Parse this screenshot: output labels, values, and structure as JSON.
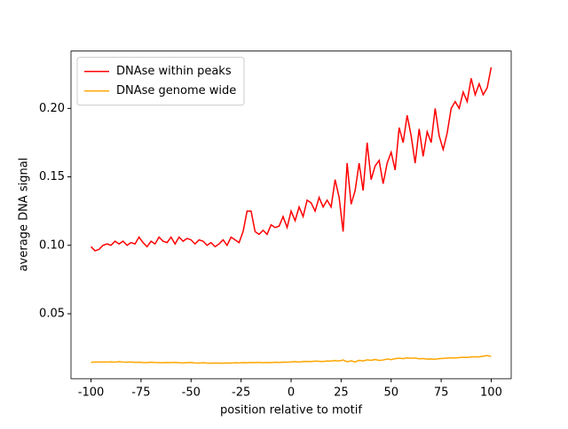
{
  "chart_data": {
    "type": "line",
    "xlabel": "position relative to motif",
    "ylabel": "average DNA signal",
    "x": [
      -100,
      -98,
      -96,
      -94,
      -92,
      -90,
      -88,
      -86,
      -84,
      -82,
      -80,
      -78,
      -76,
      -74,
      -72,
      -70,
      -68,
      -66,
      -64,
      -62,
      -60,
      -58,
      -56,
      -54,
      -52,
      -50,
      -48,
      -46,
      -44,
      -42,
      -40,
      -38,
      -36,
      -34,
      -32,
      -30,
      -28,
      -26,
      -24,
      -22,
      -20,
      -18,
      -16,
      -14,
      -12,
      -10,
      -8,
      -6,
      -4,
      -2,
      0,
      2,
      4,
      6,
      8,
      10,
      12,
      14,
      16,
      18,
      20,
      22,
      24,
      26,
      28,
      30,
      32,
      34,
      36,
      38,
      40,
      42,
      44,
      46,
      48,
      50,
      52,
      54,
      56,
      58,
      60,
      62,
      64,
      66,
      68,
      70,
      72,
      74,
      76,
      78,
      80,
      82,
      84,
      86,
      88,
      90,
      92,
      94,
      96,
      98,
      100
    ],
    "series": [
      {
        "name": "DNAse within peaks",
        "color": "#ff0000",
        "values": [
          0.099,
          0.096,
          0.097,
          0.1,
          0.101,
          0.1,
          0.103,
          0.101,
          0.103,
          0.1,
          0.102,
          0.101,
          0.106,
          0.102,
          0.099,
          0.103,
          0.101,
          0.106,
          0.103,
          0.102,
          0.106,
          0.101,
          0.106,
          0.103,
          0.105,
          0.104,
          0.101,
          0.104,
          0.103,
          0.1,
          0.102,
          0.099,
          0.101,
          0.104,
          0.1,
          0.106,
          0.104,
          0.102,
          0.11,
          0.125,
          0.125,
          0.11,
          0.108,
          0.111,
          0.108,
          0.115,
          0.113,
          0.114,
          0.121,
          0.113,
          0.125,
          0.118,
          0.128,
          0.121,
          0.133,
          0.131,
          0.125,
          0.135,
          0.128,
          0.133,
          0.128,
          0.148,
          0.135,
          0.11,
          0.16,
          0.13,
          0.14,
          0.16,
          0.14,
          0.175,
          0.148,
          0.158,
          0.162,
          0.145,
          0.16,
          0.168,
          0.155,
          0.186,
          0.175,
          0.195,
          0.18,
          0.16,
          0.185,
          0.165,
          0.183,
          0.175,
          0.2,
          0.18,
          0.17,
          0.182,
          0.2,
          0.205,
          0.2,
          0.212,
          0.205,
          0.222,
          0.21,
          0.218,
          0.21,
          0.215,
          0.23
        ]
      },
      {
        "name": "DNAse genome wide",
        "color": "#ffa500",
        "values": [
          0.0145,
          0.0148,
          0.0147,
          0.0148,
          0.0147,
          0.0149,
          0.0146,
          0.015,
          0.0147,
          0.0146,
          0.0148,
          0.0145,
          0.0146,
          0.0144,
          0.0143,
          0.0146,
          0.0144,
          0.0143,
          0.0142,
          0.0144,
          0.0143,
          0.0145,
          0.0142,
          0.0141,
          0.0143,
          0.0144,
          0.0141,
          0.014,
          0.0142,
          0.014,
          0.0139,
          0.0141,
          0.014,
          0.0139,
          0.0141,
          0.014,
          0.0142,
          0.0141,
          0.0143,
          0.0142,
          0.0144,
          0.0143,
          0.0145,
          0.0142,
          0.0144,
          0.0143,
          0.0146,
          0.0144,
          0.0147,
          0.0146,
          0.0148,
          0.015,
          0.0147,
          0.0151,
          0.0152,
          0.015,
          0.0154,
          0.0153,
          0.0151,
          0.0155,
          0.0154,
          0.0158,
          0.0155,
          0.0162,
          0.015,
          0.0156,
          0.0148,
          0.016,
          0.0155,
          0.0163,
          0.016,
          0.0166,
          0.0159,
          0.0162,
          0.017,
          0.0165,
          0.0172,
          0.0175,
          0.0172,
          0.0178,
          0.0175,
          0.0177,
          0.0171,
          0.0173,
          0.0169,
          0.017,
          0.0168,
          0.0172,
          0.0174,
          0.0176,
          0.0178,
          0.0177,
          0.018,
          0.0182,
          0.0181,
          0.0184,
          0.0186,
          0.0185,
          0.019,
          0.0195,
          0.0188
        ]
      }
    ],
    "xlim": [
      -110,
      110
    ],
    "ylim": [
      0.0026,
      0.2419
    ],
    "xticks": [
      -100,
      -75,
      -50,
      -25,
      0,
      25,
      50,
      75,
      100
    ],
    "yticks": [
      0.05,
      {
        "value": 0.1,
        "label": "0.10"
      },
      0.15,
      {
        "value": 0.2,
        "label": "0.20"
      }
    ],
    "legend": "upper left"
  }
}
